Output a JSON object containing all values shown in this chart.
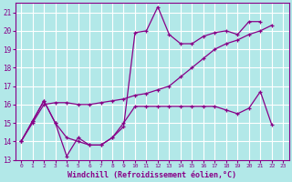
{
  "x": [
    0,
    1,
    2,
    3,
    4,
    5,
    6,
    7,
    8,
    9,
    10,
    11,
    12,
    13,
    14,
    15,
    16,
    17,
    18,
    19,
    20,
    21,
    22,
    23
  ],
  "upper_y": [
    14.0,
    15.1,
    16.2,
    15.0,
    13.2,
    14.2,
    13.8,
    13.8,
    14.2,
    14.8,
    19.9,
    20.0,
    21.3,
    19.8,
    19.3,
    19.3,
    19.7,
    19.9,
    20.0,
    19.8,
    20.5,
    20.5,
    null,
    null
  ],
  "mid_y": [
    14.0,
    15.0,
    16.0,
    16.1,
    16.1,
    16.0,
    16.0,
    16.1,
    16.2,
    16.3,
    16.5,
    16.6,
    16.8,
    17.0,
    17.5,
    18.0,
    18.5,
    19.0,
    19.3,
    19.5,
    19.8,
    20.0,
    20.3,
    null
  ],
  "lower_y": [
    14.0,
    15.1,
    16.2,
    15.0,
    14.2,
    14.0,
    13.8,
    13.8,
    14.2,
    15.0,
    15.9,
    15.9,
    15.9,
    15.9,
    15.9,
    15.9,
    15.9,
    15.9,
    15.7,
    15.5,
    15.8,
    16.7,
    14.9,
    null
  ],
  "line_color": "#880088",
  "bg_color": "#b2e8e8",
  "grid_color": "#ffffff",
  "xlabel": "Windchill (Refroidissement éolien,°C)",
  "ylim": [
    13,
    21.5
  ],
  "xlim": [
    -0.5,
    23.5
  ]
}
